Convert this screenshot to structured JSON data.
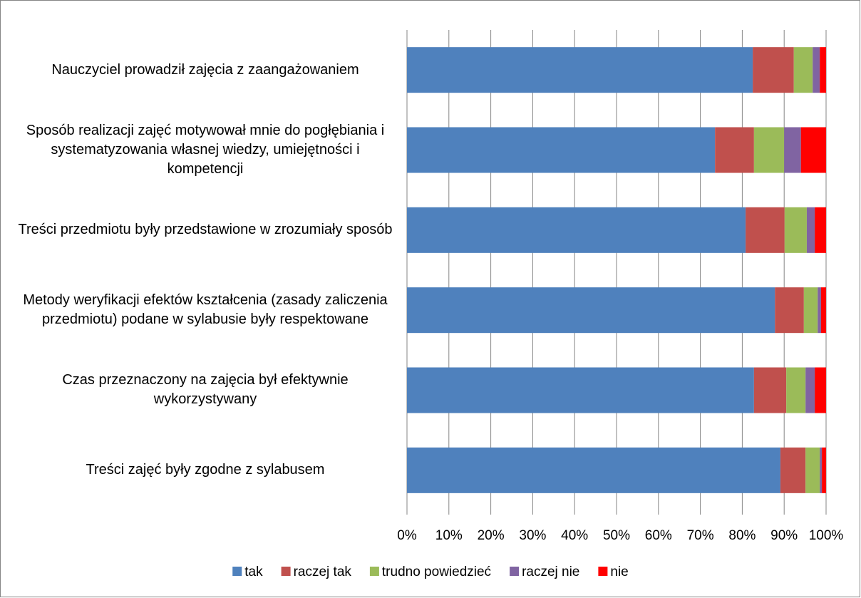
{
  "chart_data": {
    "type": "stacked_bar_horizontal",
    "categories": [
      "Nauczyciel prowadził zajęcia z zaangażowaniem",
      "Sposób realizacji zajęć motywował mnie do pogłębiania i systematyzowania własnej wiedzy, umiejętności i kompetencji",
      "Treści przedmiotu były przedstawione w zrozumiały sposób",
      "Metody weryfikacji efektów kształcenia (zasady zaliczenia przedmiotu) podane w sylabusie były respektowane",
      "Czas przeznaczony na zajęcia był efektywnie wykorzystywany",
      "Treści zajęć były zgodne z sylabusem"
    ],
    "series": [
      {
        "name": "tak",
        "color": "#4f81bd",
        "values": [
          82.5,
          73.5,
          80.8,
          87.8,
          82.8,
          89.1
        ]
      },
      {
        "name": "raczej tak",
        "color": "#c0504d",
        "values": [
          9.8,
          9.3,
          9.3,
          6.9,
          7.7,
          6.0
        ]
      },
      {
        "name": "trudno powiedzieć",
        "color": "#9bbb59",
        "values": [
          4.5,
          7.2,
          5.3,
          3.3,
          4.6,
          3.4
        ]
      },
      {
        "name": "raczej nie",
        "color": "#8064a2",
        "values": [
          1.7,
          4.0,
          1.9,
          0.8,
          2.2,
          0.5
        ]
      },
      {
        "name": "nie",
        "color": "#ff0000",
        "values": [
          1.5,
          6.0,
          2.7,
          1.2,
          2.7,
          1.0
        ]
      }
    ],
    "xlim": [
      0,
      100
    ],
    "xticks": [
      {
        "value": 0,
        "label": "0%"
      },
      {
        "value": 10,
        "label": "10%"
      },
      {
        "value": 20,
        "label": "20%"
      },
      {
        "value": 30,
        "label": "30%"
      },
      {
        "value": 40,
        "label": "40%"
      },
      {
        "value": 50,
        "label": "50%"
      },
      {
        "value": 60,
        "label": "60%"
      },
      {
        "value": 70,
        "label": "70%"
      },
      {
        "value": 80,
        "label": "80%"
      },
      {
        "value": 90,
        "label": "90%"
      },
      {
        "value": 100,
        "label": "100%"
      }
    ],
    "grid": true,
    "legend": "bottom"
  }
}
